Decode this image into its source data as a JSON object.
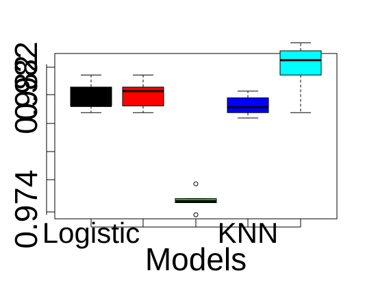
{
  "chart_data": {
    "type": "boxplot",
    "title": "",
    "xlabel": "Models",
    "ylabel": "",
    "ylim": [
      0.9729,
      0.9852
    ],
    "y_ticks": [
      0.9732,
      0.974,
      0.9748,
      0.9756,
      0.9764,
      0.9772,
      0.978,
      0.9788,
      0.9796,
      0.9804,
      0.9812,
      0.982,
      0.9828,
      0.9836,
      0.9844
    ],
    "y_tick_labels_shown": [
      "0.974",
      "0.982",
      "0.982"
    ],
    "x_tick_labels_shown": [
      "Logistic",
      "KNN"
    ],
    "grid": false,
    "legend": "none",
    "series": [
      {
        "box_color": "#000000",
        "whisker_low": 0.9808,
        "q1": 0.9813,
        "median": 0.9813,
        "q3": 0.9827,
        "whisker_high": 0.9836,
        "outliers": []
      },
      {
        "box_color": "#ff0000",
        "whisker_low": 0.9808,
        "q1": 0.9813,
        "median": 0.9824,
        "q3": 0.9827,
        "whisker_high": 0.9836,
        "outliers": []
      },
      {
        "box_color": "#00cc00",
        "whisker_low": 0.9741,
        "q1": 0.9741,
        "median": 0.9742,
        "q3": 0.9744,
        "whisker_high": 0.9744,
        "outliers": [
          0.9755,
          0.9732
        ]
      },
      {
        "box_color": "#0000ff",
        "whisker_low": 0.9804,
        "q1": 0.9808,
        "median": 0.9812,
        "q3": 0.9819,
        "whisker_high": 0.9824,
        "outliers": []
      },
      {
        "box_color": "#00ffff",
        "whisker_low": 0.9808,
        "q1": 0.9836,
        "median": 0.9847,
        "q3": 0.9854,
        "whisker_high": 0.986,
        "outliers": []
      }
    ]
  }
}
